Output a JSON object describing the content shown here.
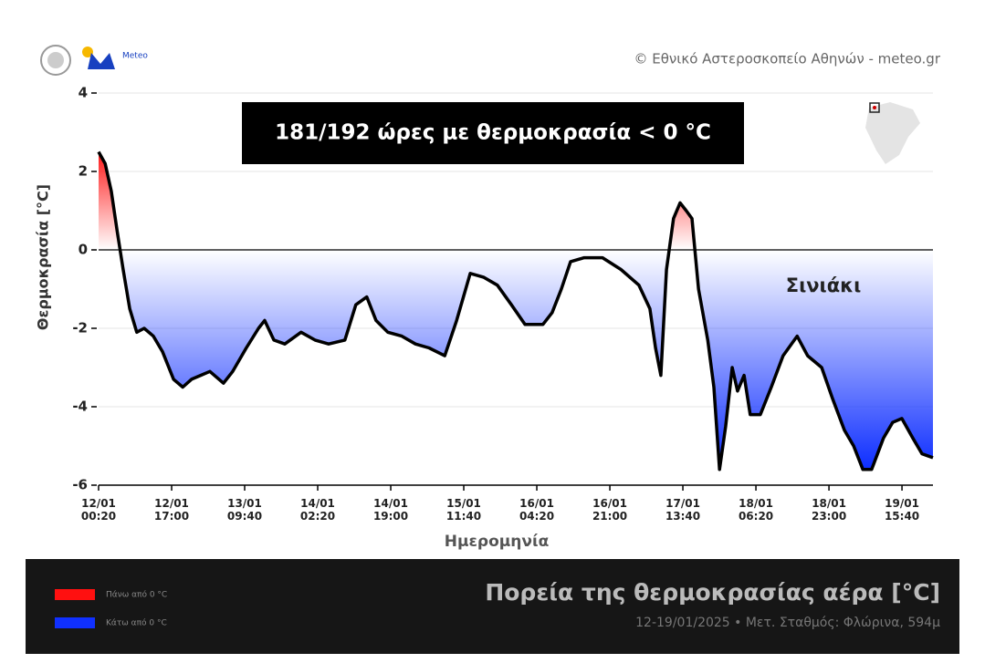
{
  "credit": "© Εθνικό Αστεροσκοπείο Αθηνών - meteo.gr",
  "logo_text": "Meteo",
  "chart_data": {
    "type": "line",
    "annotation": "181/192 ώρες με θερμοκρασία < 0 °C",
    "note": "Σινιάκι",
    "ylabel": "Θερμοκρασία [°C]",
    "xlabel": "Ημερομηνία",
    "title": "Πορεία της θερμοκρασίας αέρα [°C]",
    "subtitle": "12-19/01/2025 • Μετ. Σταθμός: Φλώρινα, 594μ",
    "legend": [
      {
        "label": "Πάνω από 0 °C",
        "color": "#ff1010"
      },
      {
        "label": "Κάτω από 0 °C",
        "color": "#1030ff"
      }
    ],
    "grid": true,
    "ylim": [
      -6,
      4
    ],
    "yticks": [
      -6,
      -4,
      -2,
      0,
      2,
      4
    ],
    "xlim": [
      0,
      190.4
    ],
    "xticks": [
      {
        "value": 0,
        "label": [
          "12/01",
          "00:20"
        ]
      },
      {
        "value": 16.67,
        "label": [
          "12/01",
          "17:00"
        ]
      },
      {
        "value": 33.33,
        "label": [
          "13/01",
          "09:40"
        ]
      },
      {
        "value": 50,
        "label": [
          "14/01",
          "02:20"
        ]
      },
      {
        "value": 66.67,
        "label": [
          "14/01",
          "19:00"
        ]
      },
      {
        "value": 83.33,
        "label": [
          "15/01",
          "11:40"
        ]
      },
      {
        "value": 100,
        "label": [
          "16/01",
          "04:20"
        ]
      },
      {
        "value": 116.67,
        "label": [
          "16/01",
          "21:00"
        ]
      },
      {
        "value": 133.33,
        "label": [
          "17/01",
          "13:40"
        ]
      },
      {
        "value": 150,
        "label": [
          "18/01",
          "06:20"
        ]
      },
      {
        "value": 166.67,
        "label": [
          "18/01",
          "23:00"
        ]
      },
      {
        "value": 183.33,
        "label": [
          "19/01",
          "15:40"
        ]
      }
    ],
    "series": [
      {
        "color": "#000000",
        "x": [
          0,
          1.5,
          2.9,
          4.2,
          5.6,
          7.1,
          8.7,
          10.4,
          12.5,
          14.6,
          17.1,
          19.2,
          21.2,
          23.3,
          25.4,
          28.5,
          30.6,
          33.7,
          36.5,
          37.9,
          40,
          42.5,
          46.2,
          49.4,
          52.5,
          56.2,
          58.7,
          61.2,
          63.3,
          66,
          69.2,
          72.3,
          75.4,
          79,
          81.7,
          84.8,
          87.9,
          91,
          94.2,
          97.3,
          101.4,
          103.5,
          105.6,
          107.7,
          110.8,
          115,
          119.2,
          123.3,
          125.8,
          127.1,
          128.3,
          129.6,
          131.2,
          132.7,
          134.1,
          135.4,
          136.9,
          139,
          140.4,
          141.7,
          143.1,
          144.6,
          145.8,
          147.3,
          148.7,
          151,
          153.5,
          156.2,
          159.4,
          161.8,
          165,
          167.5,
          170.2,
          172.3,
          174.4,
          176.4,
          179.1,
          181.2,
          183.3,
          185.8,
          187.9,
          190.4
        ],
        "values": [
          2.5,
          2.2,
          1.5,
          0.5,
          -0.5,
          -1.5,
          -2.1,
          -2.0,
          -2.2,
          -2.6,
          -3.3,
          -3.5,
          -3.3,
          -3.2,
          -3.1,
          -3.4,
          -3.1,
          -2.5,
          -2.0,
          -1.8,
          -2.3,
          -2.4,
          -2.1,
          -2.3,
          -2.4,
          -2.3,
          -1.4,
          -1.2,
          -1.8,
          -2.1,
          -2.2,
          -2.4,
          -2.5,
          -2.7,
          -1.8,
          -0.6,
          -0.7,
          -0.9,
          -1.4,
          -1.9,
          -1.9,
          -1.6,
          -1.0,
          -0.3,
          -0.2,
          -0.2,
          -0.5,
          -0.9,
          -1.5,
          -2.5,
          -3.2,
          -0.5,
          0.8,
          1.2,
          1.0,
          0.8,
          -1.0,
          -2.3,
          -3.5,
          -5.6,
          -4.5,
          -3.0,
          -3.6,
          -3.2,
          -4.2,
          -4.2,
          -3.5,
          -2.7,
          -2.2,
          -2.7,
          -3.0,
          -3.8,
          -4.6,
          -5.0,
          -5.6,
          -5.6,
          -4.8,
          -4.4,
          -4.3,
          -4.8,
          -5.2,
          -5.3
        ]
      }
    ]
  }
}
